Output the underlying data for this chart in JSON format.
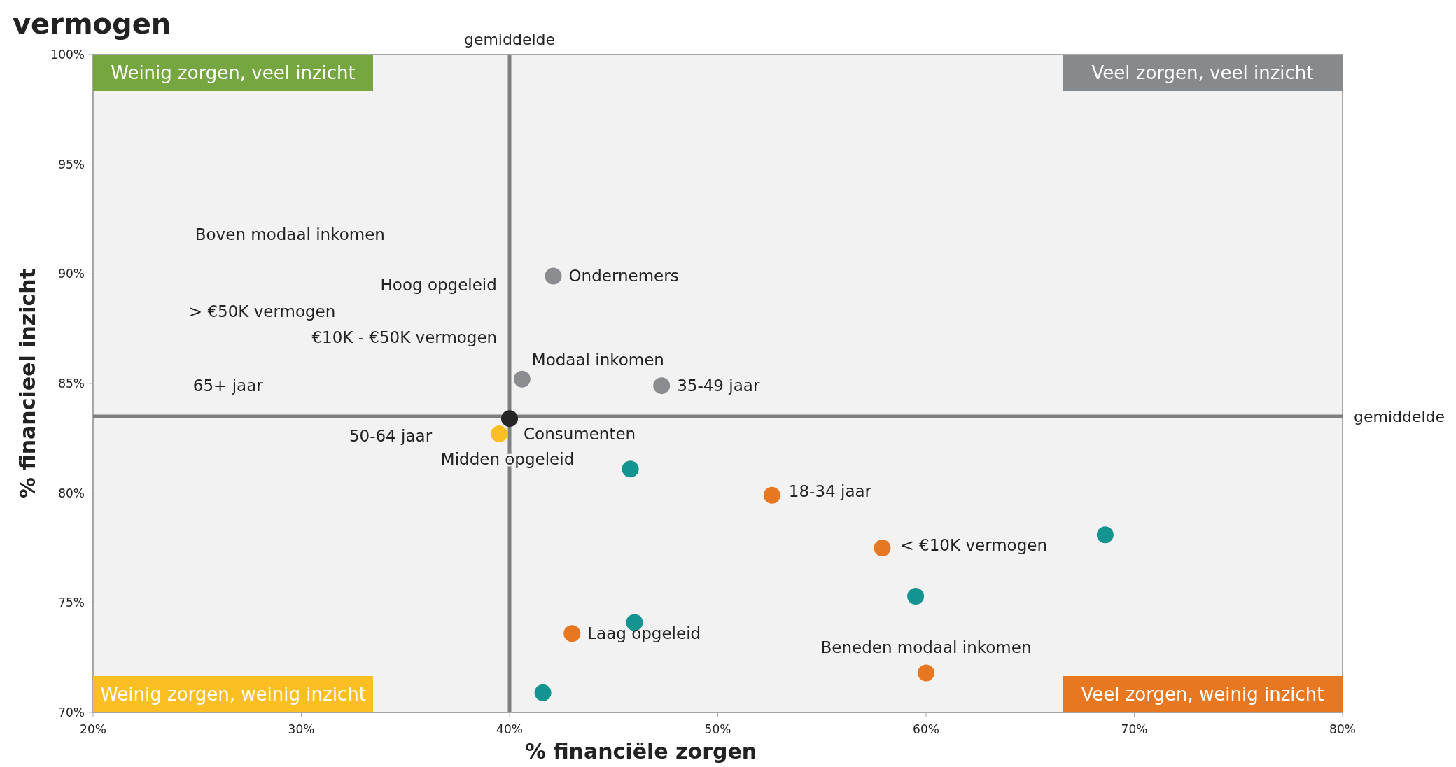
{
  "chart_data": {
    "type": "scatter",
    "title": "vermogen",
    "xlabel": "% financiële zorgen",
    "ylabel": "% financieel inzicht",
    "xlim": [
      20,
      80
    ],
    "ylim": [
      70,
      100
    ],
    "xticks": [
      {
        "value": 20,
        "label": "20%"
      },
      {
        "value": 30,
        "label": "30%"
      },
      {
        "value": 40,
        "label": "40%"
      },
      {
        "value": 50,
        "label": "50%"
      },
      {
        "value": 60,
        "label": "60%"
      },
      {
        "value": 70,
        "label": "70%"
      },
      {
        "value": 80,
        "label": "80%"
      }
    ],
    "yticks": [
      {
        "value": 70,
        "label": "70%"
      },
      {
        "value": 75,
        "label": "75%"
      },
      {
        "value": 80,
        "label": "80%"
      },
      {
        "value": 85,
        "label": "85%"
      },
      {
        "value": 90,
        "label": "90%"
      },
      {
        "value": 95,
        "label": "95%"
      },
      {
        "value": 100,
        "label": "100%"
      }
    ],
    "grid": false,
    "marker": "circle",
    "series": [
      {
        "color": "#8a8c8f",
        "x": [
          42.1,
          40.6,
          47.3
        ],
        "values": [
          89.9,
          85.2,
          84.9
        ]
      },
      {
        "color": "#262626",
        "x": [
          40.0
        ],
        "values": [
          83.4
        ]
      },
      {
        "color": "#fbbf24",
        "x": [
          39.5
        ],
        "values": [
          82.7
        ]
      },
      {
        "color": "#139490",
        "x": [
          45.8,
          68.6,
          59.5,
          46.0,
          41.6
        ],
        "values": [
          81.1,
          78.1,
          75.3,
          74.1,
          70.9
        ]
      },
      {
        "color": "#e87722",
        "x": [
          52.6,
          57.9,
          43.0,
          60.0
        ],
        "values": [
          79.9,
          77.5,
          73.6,
          71.8
        ]
      }
    ],
    "ref_lines": [
      {
        "axis": "x",
        "value": 40,
        "label": "gemiddelde",
        "color": "#7f7f7f"
      },
      {
        "axis": "y",
        "value": 83.5,
        "label": "gemiddelde",
        "color": "#7f7f7f"
      }
    ],
    "annotations": [
      "Weinig zorgen, veel inzicht",
      "Veel zorgen, veel inzicht",
      "Weinig zorgen, weinig inzicht",
      "Veel zorgen, weinig inzicht",
      "Boven modaal inkomen",
      "Hoog opgeleid",
      "> €50K vermogen",
      "€10K - €50K vermogen",
      "65+ jaar",
      "Midden opgeleid",
      "50-64 jaar",
      {
        "text": "Ondernemers",
        "x": 42.1,
        "y": 89.9
      },
      {
        "text": "Modaal inkomen",
        "x": 40.6,
        "y": 85.2
      },
      {
        "text": "35-49 jaar",
        "x": 47.3,
        "y": 84.9
      },
      {
        "text": "Consumenten",
        "x": 40.0,
        "y": 83.4
      },
      {
        "text": "18-34 jaar",
        "x": 52.6,
        "y": 79.9
      },
      {
        "text": "< €10K vermogen",
        "x": 57.9,
        "y": 77.5
      },
      {
        "text": "Laag opgeleid",
        "x": 43.0,
        "y": 73.6
      },
      {
        "text": "Beneden modaal inkomen",
        "x": 60.0,
        "y": 71.8
      }
    ]
  }
}
